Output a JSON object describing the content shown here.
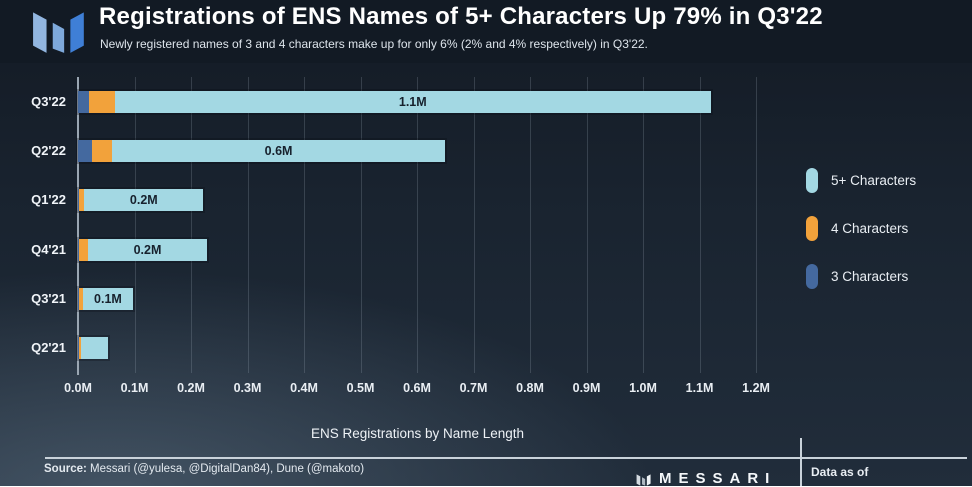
{
  "header": {
    "title": "Registrations of ENS Names of 5+ Characters Up 79% in Q3'22",
    "subtitle": "Newly registered names of 3 and 4 characters make up for only 6% (2% and 4% respectively) in Q3'22."
  },
  "chart_data": {
    "type": "bar",
    "orientation": "horizontal",
    "stacked": true,
    "xlabel": "ENS Registrations by Name Length",
    "categories": [
      "Q3'22",
      "Q2'22",
      "Q1'22",
      "Q4'21",
      "Q3'21",
      "Q2'21"
    ],
    "series": [
      {
        "name": "3 Characters",
        "color": "#44699f",
        "values": [
          0.02,
          0.025,
          0.001,
          0.001,
          0.001,
          0.001
        ]
      },
      {
        "name": "4 Characters",
        "color": "#f2a23b",
        "values": [
          0.045,
          0.035,
          0.01,
          0.016,
          0.008,
          0.005
        ]
      },
      {
        "name": "5+ Characters",
        "color": "#a3d8e3",
        "values": [
          1.055,
          0.59,
          0.211,
          0.212,
          0.088,
          0.048
        ]
      }
    ],
    "bar_total_labels": [
      "1.1M",
      "0.6M",
      "0.2M",
      "0.2M",
      "0.1M",
      ""
    ],
    "x_ticks": [
      "0.0M",
      "0.1M",
      "0.2M",
      "0.3M",
      "0.4M",
      "0.5M",
      "0.6M",
      "0.7M",
      "0.8M",
      "0.9M",
      "1.0M",
      "1.1M",
      "1.2M"
    ],
    "xlim": [
      0,
      1.23
    ],
    "grid": true,
    "legend_position": "right",
    "legend_order": [
      "5+ Characters",
      "4 Characters",
      "3 Characters"
    ]
  },
  "footer": {
    "source_label": "Source:",
    "source_rest": " Messari (@yulesa, @DigitalDan84), Dune (@makoto)",
    "brand": "MESSARI",
    "data_as_of": "Data as of"
  }
}
